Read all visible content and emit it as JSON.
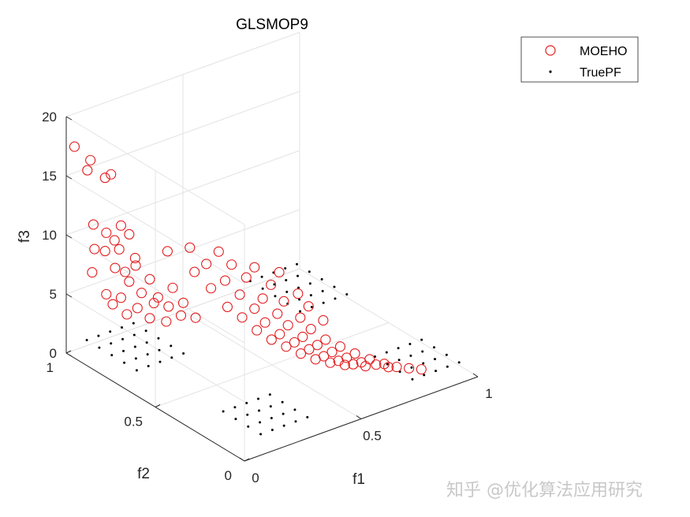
{
  "chart_data": {
    "type": "scatter3d",
    "title": "GLSMOP9",
    "xlabel": "f1",
    "ylabel": "f2",
    "zlabel": "f3",
    "xlim": [
      0,
      1
    ],
    "ylim": [
      0,
      1
    ],
    "zlim": [
      0,
      20
    ],
    "xticks": [
      "0",
      "0.5",
      "1"
    ],
    "yticks": [
      "0",
      "0.5",
      "1"
    ],
    "zticks": [
      "0",
      "5",
      "10",
      "15",
      "20"
    ],
    "grid": true,
    "legend_position": "top-right",
    "colors": {
      "MOEHO": "#e41a1c",
      "TruePF": "#000000"
    },
    "series": [
      {
        "name": "MOEHO",
        "marker": "open-circle",
        "points": [
          [
            0.02,
            0.98,
            17.5
          ],
          [
            0.05,
            0.93,
            16.6
          ],
          [
            0.06,
            0.96,
            15.4
          ],
          [
            0.09,
            0.9,
            15.1
          ],
          [
            0.1,
            0.88,
            15.5
          ],
          [
            0.04,
            0.9,
            11.5
          ],
          [
            0.08,
            0.88,
            10.7
          ],
          [
            0.12,
            0.85,
            11.3
          ],
          [
            0.14,
            0.83,
            10.6
          ],
          [
            0.1,
            0.86,
            10.1
          ],
          [
            0.06,
            0.92,
            9.1
          ],
          [
            0.09,
            0.9,
            8.9
          ],
          [
            0.12,
            0.86,
            9.2
          ],
          [
            0.15,
            0.81,
            8.7
          ],
          [
            0.13,
            0.84,
            7.4
          ],
          [
            0.05,
            0.92,
            7.2
          ],
          [
            0.11,
            0.87,
            7.6
          ],
          [
            0.16,
            0.82,
            7.9
          ],
          [
            0.19,
            0.78,
            6.9
          ],
          [
            0.14,
            0.83,
            6.6
          ],
          [
            0.08,
            0.88,
            5.5
          ],
          [
            0.12,
            0.85,
            5.2
          ],
          [
            0.17,
            0.8,
            5.7
          ],
          [
            0.21,
            0.76,
            5.4
          ],
          [
            0.25,
            0.73,
            6.2
          ],
          [
            0.1,
            0.87,
            4.6
          ],
          [
            0.16,
            0.81,
            4.4
          ],
          [
            0.2,
            0.77,
            4.9
          ],
          [
            0.24,
            0.74,
            4.6
          ],
          [
            0.28,
            0.71,
            4.9
          ],
          [
            0.13,
            0.83,
            3.9
          ],
          [
            0.19,
            0.78,
            3.6
          ],
          [
            0.23,
            0.74,
            3.4
          ],
          [
            0.27,
            0.71,
            3.9
          ],
          [
            0.31,
            0.68,
            3.7
          ],
          [
            0.22,
            0.72,
            9.6
          ],
          [
            0.27,
            0.66,
            10.1
          ],
          [
            0.34,
            0.59,
            9.9
          ],
          [
            0.31,
            0.62,
            8.8
          ],
          [
            0.38,
            0.57,
            8.7
          ],
          [
            0.44,
            0.52,
            8.5
          ],
          [
            0.5,
            0.46,
            8.2
          ],
          [
            0.29,
            0.66,
            7.9
          ],
          [
            0.36,
            0.58,
            7.4
          ],
          [
            0.42,
            0.54,
            7.6
          ],
          [
            0.48,
            0.48,
            7.1
          ],
          [
            0.55,
            0.42,
            6.4
          ],
          [
            0.33,
            0.62,
            6.6
          ],
          [
            0.4,
            0.55,
            6.2
          ],
          [
            0.46,
            0.5,
            5.9
          ],
          [
            0.52,
            0.46,
            5.6
          ],
          [
            0.58,
            0.4,
            5.3
          ],
          [
            0.37,
            0.58,
            5.1
          ],
          [
            0.44,
            0.52,
            5.0
          ],
          [
            0.5,
            0.47,
            4.6
          ],
          [
            0.56,
            0.42,
            4.3
          ],
          [
            0.62,
            0.37,
            4.1
          ],
          [
            0.41,
            0.55,
            4.2
          ],
          [
            0.47,
            0.5,
            3.8
          ],
          [
            0.53,
            0.45,
            3.6
          ],
          [
            0.59,
            0.4,
            3.3
          ],
          [
            0.45,
            0.52,
            3.1
          ],
          [
            0.51,
            0.47,
            2.8
          ],
          [
            0.57,
            0.42,
            2.6
          ],
          [
            0.63,
            0.37,
            2.4
          ],
          [
            0.49,
            0.49,
            2.3
          ],
          [
            0.55,
            0.44,
            2.1
          ],
          [
            0.61,
            0.39,
            1.9
          ],
          [
            0.67,
            0.34,
            1.8
          ],
          [
            0.53,
            0.46,
            1.7
          ],
          [
            0.59,
            0.41,
            1.5
          ],
          [
            0.65,
            0.36,
            1.3
          ],
          [
            0.71,
            0.31,
            1.2
          ],
          [
            0.57,
            0.43,
            1.1
          ],
          [
            0.63,
            0.38,
            0.9
          ],
          [
            0.69,
            0.33,
            0.8
          ],
          [
            0.75,
            0.28,
            0.7
          ],
          [
            0.61,
            0.4,
            0.6
          ],
          [
            0.67,
            0.35,
            0.5
          ],
          [
            0.73,
            0.3,
            0.4
          ],
          [
            0.79,
            0.25,
            0.3
          ],
          [
            0.65,
            0.37,
            0.3
          ],
          [
            0.71,
            0.32,
            0.2
          ],
          [
            0.77,
            0.27,
            0.2
          ],
          [
            0.82,
            0.22,
            0.1
          ],
          [
            0.69,
            0.34,
            0.1
          ],
          [
            0.74,
            0.29,
            0.1
          ],
          [
            0.8,
            0.24,
            0.05
          ],
          [
            0.85,
            0.19,
            0.05
          ],
          [
            0.88,
            0.16,
            0.02
          ]
        ]
      },
      {
        "name": "TruePF",
        "marker": "dot",
        "points": [
          [
            0.05,
            0.95,
            1.2
          ],
          [
            0.1,
            0.95,
            1.2
          ],
          [
            0.15,
            0.95,
            1.2
          ],
          [
            0.2,
            0.95,
            1.2
          ],
          [
            0.25,
            0.95,
            1.2
          ],
          [
            0.05,
            0.88,
            1.2
          ],
          [
            0.1,
            0.88,
            1.2
          ],
          [
            0.15,
            0.88,
            1.2
          ],
          [
            0.2,
            0.88,
            1.2
          ],
          [
            0.25,
            0.88,
            1.2
          ],
          [
            0.05,
            0.81,
            1.2
          ],
          [
            0.1,
            0.81,
            1.2
          ],
          [
            0.15,
            0.81,
            1.2
          ],
          [
            0.2,
            0.81,
            1.2
          ],
          [
            0.25,
            0.81,
            1.2
          ],
          [
            0.05,
            0.74,
            1.2
          ],
          [
            0.1,
            0.74,
            1.2
          ],
          [
            0.15,
            0.74,
            1.2
          ],
          [
            0.2,
            0.74,
            1.2
          ],
          [
            0.25,
            0.74,
            1.2
          ],
          [
            0.05,
            0.67,
            1.2
          ],
          [
            0.1,
            0.67,
            1.2
          ],
          [
            0.15,
            0.67,
            1.2
          ],
          [
            0.2,
            0.67,
            1.2
          ],
          [
            0.25,
            0.67,
            1.2
          ],
          [
            0.75,
            0.95,
            1.2
          ],
          [
            0.8,
            0.95,
            1.2
          ],
          [
            0.85,
            0.95,
            1.2
          ],
          [
            0.9,
            0.95,
            1.2
          ],
          [
            0.95,
            0.95,
            1.2
          ],
          [
            0.75,
            0.88,
            1.2
          ],
          [
            0.8,
            0.88,
            1.2
          ],
          [
            0.85,
            0.88,
            1.2
          ],
          [
            0.9,
            0.88,
            1.2
          ],
          [
            0.95,
            0.88,
            1.2
          ],
          [
            0.75,
            0.81,
            1.2
          ],
          [
            0.8,
            0.81,
            1.2
          ],
          [
            0.85,
            0.81,
            1.2
          ],
          [
            0.9,
            0.81,
            1.2
          ],
          [
            0.95,
            0.81,
            1.2
          ],
          [
            0.75,
            0.74,
            1.2
          ],
          [
            0.8,
            0.74,
            1.2
          ],
          [
            0.85,
            0.74,
            1.2
          ],
          [
            0.9,
            0.74,
            1.2
          ],
          [
            0.95,
            0.74,
            1.2
          ],
          [
            0.75,
            0.67,
            1.2
          ],
          [
            0.8,
            0.67,
            1.2
          ],
          [
            0.85,
            0.67,
            1.2
          ],
          [
            0.9,
            0.67,
            1.2
          ],
          [
            0.95,
            0.67,
            1.2
          ],
          [
            0.75,
            0.25,
            1.2
          ],
          [
            0.8,
            0.25,
            1.2
          ],
          [
            0.85,
            0.25,
            1.2
          ],
          [
            0.9,
            0.25,
            1.2
          ],
          [
            0.95,
            0.25,
            1.2
          ],
          [
            0.75,
            0.18,
            1.2
          ],
          [
            0.8,
            0.18,
            1.2
          ],
          [
            0.85,
            0.18,
            1.2
          ],
          [
            0.9,
            0.18,
            1.2
          ],
          [
            0.95,
            0.18,
            1.2
          ],
          [
            0.75,
            0.11,
            1.2
          ],
          [
            0.8,
            0.11,
            1.2
          ],
          [
            0.85,
            0.11,
            1.2
          ],
          [
            0.9,
            0.11,
            1.2
          ],
          [
            0.95,
            0.11,
            1.2
          ],
          [
            0.75,
            0.04,
            1.2
          ],
          [
            0.8,
            0.04,
            1.2
          ],
          [
            0.85,
            0.04,
            1.2
          ],
          [
            0.9,
            0.04,
            1.2
          ],
          [
            0.95,
            0.04,
            1.2
          ],
          [
            0.1,
            0.25,
            1.2
          ],
          [
            0.15,
            0.25,
            1.2
          ],
          [
            0.2,
            0.25,
            1.2
          ],
          [
            0.25,
            0.25,
            1.2
          ],
          [
            0.3,
            0.25,
            1.2
          ],
          [
            0.1,
            0.18,
            1.2
          ],
          [
            0.15,
            0.18,
            1.2
          ],
          [
            0.2,
            0.18,
            1.2
          ],
          [
            0.25,
            0.18,
            1.2
          ],
          [
            0.3,
            0.18,
            1.2
          ],
          [
            0.1,
            0.11,
            1.2
          ],
          [
            0.15,
            0.11,
            1.2
          ],
          [
            0.2,
            0.11,
            1.2
          ],
          [
            0.25,
            0.11,
            1.2
          ],
          [
            0.3,
            0.11,
            1.2
          ],
          [
            0.1,
            0.04,
            1.2
          ],
          [
            0.15,
            0.04,
            1.2
          ],
          [
            0.2,
            0.04,
            1.2
          ],
          [
            0.25,
            0.04,
            1.2
          ],
          [
            0.3,
            0.04,
            1.2
          ]
        ]
      }
    ]
  },
  "watermark": "知乎 @优化算法应用研究"
}
